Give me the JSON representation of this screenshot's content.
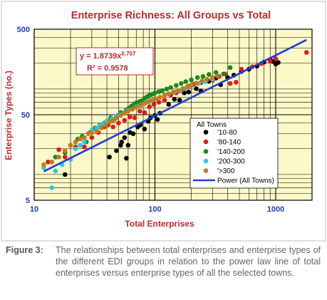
{
  "chart_data": {
    "type": "scatter",
    "title": "Enterprise Richness: All Groups vs Total",
    "xlabel": "Total Enterprises",
    "ylabel": "Enterprise Types (no.)",
    "x_scale": "log",
    "y_scale": "log",
    "xlim": [
      10,
      2000
    ],
    "ylim": [
      5,
      500
    ],
    "x_ticks": [
      10,
      100,
      1000
    ],
    "y_ticks": [
      5,
      50,
      500
    ],
    "x_tick_labels": [
      "10",
      "100",
      "1000"
    ],
    "y_tick_labels": [
      "5",
      "50",
      "500"
    ],
    "grid": true,
    "legend_title": "All Towns",
    "legend_position": "right",
    "equation": {
      "label": "y = 1.8739x",
      "exponent": "0.707",
      "r2": "R² = 0.9578",
      "a": 1.8739,
      "b": 0.707
    },
    "trendline": {
      "name": "Power (All Towns)",
      "color": "#1f3fd6",
      "x": [
        12,
        1800
      ]
    },
    "series": [
      {
        "name": "'10-80",
        "color": "#000000",
        "points": [
          [
            18,
            10
          ],
          [
            42,
            16
          ],
          [
            48,
            19
          ],
          [
            52,
            22
          ],
          [
            53,
            24
          ],
          [
            56,
            27
          ],
          [
            58,
            15.5
          ],
          [
            60,
            22
          ],
          [
            62,
            31
          ],
          [
            66,
            30
          ],
          [
            72,
            36
          ],
          [
            76,
            38
          ],
          [
            82,
            34
          ],
          [
            88,
            42
          ],
          [
            92,
            46
          ],
          [
            100,
            49
          ],
          [
            105,
            44
          ],
          [
            110,
            52
          ],
          [
            130,
            66
          ],
          [
            145,
            76
          ],
          [
            160,
            74
          ],
          [
            175,
            90
          ],
          [
            190,
            92
          ],
          [
            220,
            101
          ],
          [
            240,
            95
          ],
          [
            280,
            123
          ],
          [
            320,
            134
          ],
          [
            350,
            112
          ],
          [
            400,
            136
          ],
          [
            450,
            145
          ],
          [
            520,
            160
          ],
          [
            600,
            170
          ],
          [
            700,
            185
          ],
          [
            800,
            206
          ],
          [
            900,
            220
          ],
          [
            950,
            210
          ],
          [
            1000,
            196
          ],
          [
            1050,
            204
          ]
        ]
      },
      {
        "name": "'80-140",
        "color": "#e01a1a",
        "points": [
          [
            13,
            14
          ],
          [
            16,
            19.5
          ],
          [
            18,
            16
          ],
          [
            22,
            21
          ],
          [
            26,
            21
          ],
          [
            30,
            27
          ],
          [
            34,
            31
          ],
          [
            38,
            36
          ],
          [
            41,
            38
          ],
          [
            45,
            36
          ],
          [
            50,
            40
          ],
          [
            56,
            43
          ],
          [
            62,
            47
          ],
          [
            68,
            46
          ],
          [
            75,
            55
          ],
          [
            82,
            53
          ],
          [
            90,
            62
          ],
          [
            98,
            66
          ],
          [
            108,
            70
          ],
          [
            120,
            74
          ],
          [
            135,
            85
          ],
          [
            150,
            90
          ],
          [
            170,
            98
          ],
          [
            190,
            108
          ],
          [
            210,
            114
          ],
          [
            240,
            118
          ],
          [
            270,
            128
          ],
          [
            300,
            126
          ],
          [
            340,
            140
          ],
          [
            380,
            150
          ],
          [
            420,
            116
          ],
          [
            470,
            120
          ],
          [
            520,
            170
          ],
          [
            640,
            182
          ],
          [
            760,
            198
          ],
          [
            900,
            212
          ],
          [
            1000,
            226
          ],
          [
            1800,
            268
          ]
        ]
      },
      {
        "name": "'140-200",
        "color": "#1a8a1a",
        "points": [
          [
            15,
            16
          ],
          [
            18,
            18
          ],
          [
            20,
            22
          ],
          [
            23,
            26
          ],
          [
            25,
            28
          ],
          [
            27,
            24
          ],
          [
            29,
            31
          ],
          [
            32,
            35
          ],
          [
            35,
            38
          ],
          [
            38,
            40
          ],
          [
            41,
            42
          ],
          [
            43,
            46
          ],
          [
            46,
            44
          ],
          [
            49,
            49
          ],
          [
            52,
            53
          ],
          [
            55,
            52
          ],
          [
            58,
            57
          ],
          [
            61,
            60
          ],
          [
            64,
            63
          ],
          [
            67,
            66
          ],
          [
            70,
            69
          ],
          [
            74,
            71
          ],
          [
            78,
            73
          ],
          [
            82,
            78
          ],
          [
            86,
            81
          ],
          [
            90,
            84
          ],
          [
            95,
            87
          ],
          [
            100,
            90
          ],
          [
            108,
            93
          ],
          [
            115,
            96
          ],
          [
            125,
            100
          ],
          [
            135,
            104
          ],
          [
            150,
            110
          ],
          [
            165,
            116
          ],
          [
            180,
            122
          ],
          [
            200,
            128
          ],
          [
            225,
            136
          ],
          [
            250,
            140
          ],
          [
            280,
            148
          ],
          [
            320,
            156
          ],
          [
            370,
            150
          ],
          [
            420,
            178
          ]
        ]
      },
      {
        "name": "'200-300",
        "color": "#27c9e8",
        "points": [
          [
            12,
            12
          ],
          [
            14,
            7
          ],
          [
            15,
            11
          ],
          [
            17,
            13
          ],
          [
            20,
            15
          ],
          [
            22,
            20
          ],
          [
            24,
            22
          ],
          [
            26,
            24
          ],
          [
            28,
            30
          ],
          [
            30,
            33
          ],
          [
            33,
            35
          ],
          [
            35,
            37
          ],
          [
            37,
            39
          ],
          [
            40,
            42
          ],
          [
            44,
            45
          ],
          [
            48,
            48
          ],
          [
            52,
            50
          ],
          [
            56,
            53
          ],
          [
            60,
            56
          ],
          [
            65,
            58
          ],
          [
            70,
            62
          ],
          [
            75,
            64
          ],
          [
            80,
            66
          ],
          [
            85,
            70
          ],
          [
            92,
            72
          ],
          [
            100,
            76
          ],
          [
            110,
            80
          ],
          [
            120,
            84
          ],
          [
            130,
            88
          ],
          [
            145,
            92
          ],
          [
            160,
            96
          ],
          [
            180,
            102
          ],
          [
            200,
            108
          ],
          [
            230,
            116
          ],
          [
            260,
            122
          ],
          [
            300,
            130
          ]
        ]
      },
      {
        "name": "'>300",
        "color": "#c47a1e",
        "points": [
          [
            12,
            13
          ],
          [
            14,
            14
          ],
          [
            16,
            16
          ],
          [
            18,
            19
          ],
          [
            20,
            22
          ],
          [
            22,
            24
          ],
          [
            24,
            26
          ],
          [
            26,
            27
          ],
          [
            28,
            30
          ],
          [
            30,
            31
          ],
          [
            33,
            32
          ],
          [
            36,
            35
          ],
          [
            39,
            38
          ],
          [
            42,
            41
          ],
          [
            45,
            43
          ],
          [
            48,
            46
          ],
          [
            52,
            49
          ],
          [
            56,
            52
          ],
          [
            60,
            55
          ],
          [
            65,
            58
          ],
          [
            70,
            61
          ],
          [
            76,
            65
          ],
          [
            82,
            68
          ],
          [
            88,
            71
          ],
          [
            95,
            74
          ],
          [
            102,
            77
          ],
          [
            110,
            80
          ],
          [
            120,
            84
          ],
          [
            130,
            88
          ],
          [
            142,
            92
          ],
          [
            155,
            96
          ],
          [
            170,
            101
          ],
          [
            185,
            106
          ],
          [
            200,
            111
          ],
          [
            220,
            117
          ],
          [
            245,
            124
          ],
          [
            270,
            130
          ],
          [
            300,
            136
          ],
          [
            330,
            142
          ]
        ]
      }
    ]
  },
  "caption": {
    "label": "Figure 3:",
    "text": "The relationships between total enterprises and enterprise types of the different EDI groups in relation to the power law line of total enterprises versus enterprise types of all the selected towns."
  }
}
